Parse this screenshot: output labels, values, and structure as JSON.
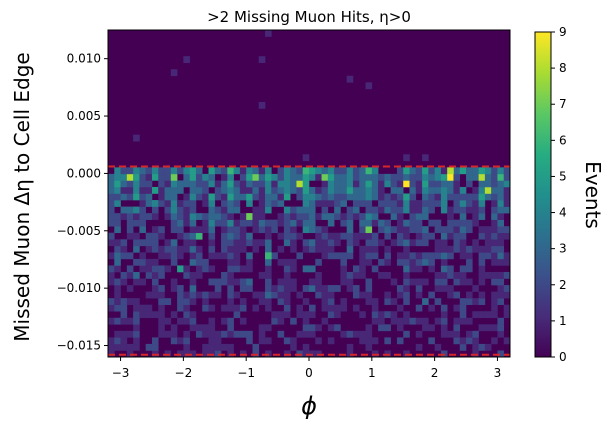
{
  "chart_data": {
    "type": "heatmap",
    "title": ">2 Missing Muon Hits, η>0",
    "xlabel": "ϕ",
    "ylabel": "Missed Muon Δη to Cell Edge",
    "colorbar_label": "Events",
    "colormap": "viridis",
    "xlim": [
      -3.2,
      3.2
    ],
    "ylim": [
      -0.016,
      0.0125
    ],
    "x_ticks": [
      -3,
      -2,
      -1,
      0,
      1,
      2,
      3
    ],
    "x_tick_labels": [
      "−3",
      "−2",
      "−1",
      "0",
      "1",
      "2",
      "3"
    ],
    "y_ticks": [
      -0.015,
      -0.01,
      -0.005,
      0.0,
      0.005,
      0.01
    ],
    "y_tick_labels": [
      "−0.015",
      "−0.010",
      "−0.005",
      "0.000",
      "0.005",
      "0.010"
    ],
    "colorbar_range": [
      0,
      9
    ],
    "colorbar_ticks": [
      0,
      1,
      2,
      3,
      4,
      5,
      6,
      7,
      8,
      9
    ],
    "reference_lines": [
      {
        "axis": "y",
        "value": 0.0006,
        "style": "dashed",
        "color": "#d62728"
      },
      {
        "axis": "y",
        "value": -0.0158,
        "style": "dashed",
        "color": "#d62728"
      }
    ],
    "bins": {
      "x": 64,
      "y": 50
    },
    "dense_region_y": [
      -0.0158,
      0.0006
    ],
    "notable_cells": [
      {
        "x": -2.85,
        "y": -0.0006,
        "value": 8
      },
      {
        "x": -2.2,
        "y": -0.0006,
        "value": 7
      },
      {
        "x": -0.85,
        "y": -0.0002,
        "value": 7
      },
      {
        "x": -0.15,
        "y": -0.001,
        "value": 8
      },
      {
        "x": 0.25,
        "y": -0.0002,
        "value": 7
      },
      {
        "x": 1.5,
        "y": -0.0008,
        "value": 9
      },
      {
        "x": 2.25,
        "y": -0.0002,
        "value": 9
      },
      {
        "x": 2.7,
        "y": -0.0002,
        "value": 8
      },
      {
        "x": 2.9,
        "y": -0.0017,
        "value": 8
      },
      {
        "x": 0.9,
        "y": -0.005,
        "value": 7
      },
      {
        "x": -1.8,
        "y": -0.0055,
        "value": 6
      },
      {
        "x": -1.0,
        "y": -0.004,
        "value": 7
      },
      {
        "x": 2.25,
        "y": 0.0,
        "value": 8
      },
      {
        "x": -2.05,
        "y": -0.0083,
        "value": 5
      },
      {
        "x": -0.65,
        "y": -0.007,
        "value": 6
      }
    ],
    "sparse_cells": [
      {
        "x": -2.8,
        "y": 0.003,
        "value": 1
      },
      {
        "x": -2.2,
        "y": 0.009,
        "value": 1
      },
      {
        "x": -2.0,
        "y": 0.01,
        "value": 1
      },
      {
        "x": -0.8,
        "y": 0.01,
        "value": 1
      },
      {
        "x": -0.75,
        "y": 0.006,
        "value": 1
      },
      {
        "x": -0.7,
        "y": 0.012,
        "value": 1
      },
      {
        "x": 0.65,
        "y": 0.0085,
        "value": 1
      },
      {
        "x": 0.95,
        "y": 0.0075,
        "value": 1
      },
      {
        "x": 1.5,
        "y": 0.0015,
        "value": 1
      },
      {
        "x": 1.8,
        "y": 0.0015,
        "value": 1
      },
      {
        "x": -0.05,
        "y": 0.0015,
        "value": 1
      }
    ]
  }
}
